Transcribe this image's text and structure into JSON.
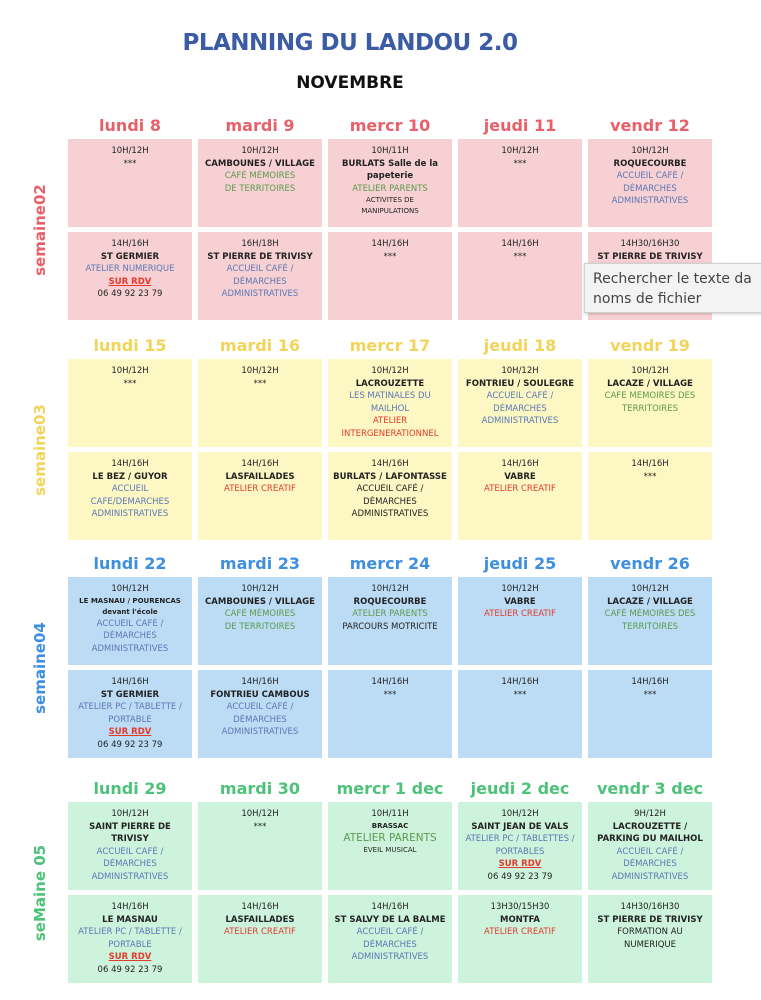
{
  "title": "PLANNING DU LANDOU 2.0",
  "subtitle": "NOVEMBRE",
  "weeks": [
    {
      "label": "semaine02",
      "color": "#e8606a",
      "background": "#f7d0d3",
      "days": [
        {
          "header": "lundi 8",
          "slots": [
            [
              {
                "text": "10H/12H"
              },
              {
                "text": "***"
              }
            ],
            [
              {
                "text": "14H/16H"
              },
              {
                "text": "ST GERMIER",
                "bold": true
              },
              {
                "text": "ATELIER NUMERIQUE",
                "color": "#5b78b5"
              },
              {
                "text": "SUR RDV",
                "color": "#e23b2e",
                "bold": true,
                "underline": true
              },
              {
                "text": "06 49 92 23 79"
              }
            ]
          ]
        },
        {
          "header": "mardi 9",
          "slots": [
            [
              {
                "text": "10H/12H"
              },
              {
                "text": "CAMBOUNES / VILLAGE",
                "bold": true
              },
              {
                "text": "CAFÉ MÉMOIRES",
                "color": "#5a9a4e"
              },
              {
                "text": "DE TERRITOIRES",
                "color": "#5a9a4e"
              }
            ],
            [
              {
                "text": "16H/18H"
              },
              {
                "text": "ST PIERRE DE TRIVISY",
                "bold": true
              },
              {
                "text": "ACCUEIL CAFÉ /",
                "color": "#5b78b5"
              },
              {
                "text": "DÉMARCHES",
                "color": "#5b78b5"
              },
              {
                "text": "ADMINISTRATIVES",
                "color": "#5b78b5"
              }
            ]
          ]
        },
        {
          "header": "mercr 10",
          "slots": [
            [
              {
                "text": "10H/11H"
              },
              {
                "text": "BURLATS Salle de la",
                "bold": true
              },
              {
                "text": "papeterie",
                "bold": true
              },
              {
                "text": "ATELIER PARENTS",
                "color": "#5a9a4e"
              },
              {
                "text": "ACTIVITES DE",
                "small": true
              },
              {
                "text": "MANIPULATIONS",
                "small": true
              }
            ],
            [
              {
                "text": "14H/16H"
              },
              {
                "text": "***"
              }
            ]
          ]
        },
        {
          "header": "jeudi 11",
          "slots": [
            [
              {
                "text": "10H/12H"
              },
              {
                "text": "***"
              }
            ],
            [
              {
                "text": "14H/16H"
              },
              {
                "text": "***"
              }
            ]
          ]
        },
        {
          "header": "vendr 12",
          "slots": [
            [
              {
                "text": "10H/12H"
              },
              {
                "text": "ROQUECOURBE",
                "bold": true
              },
              {
                "text": "ACCUEIL CAFÉ /",
                "color": "#5b78b5"
              },
              {
                "text": "DÉMARCHES",
                "color": "#5b78b5"
              },
              {
                "text": "ADMINISTRATIVES",
                "color": "#5b78b5"
              }
            ],
            [
              {
                "text": "14H30/16H30"
              },
              {
                "text": "ST PIERRE DE TRIVISY",
                "bold": true
              }
            ]
          ]
        }
      ]
    },
    {
      "label": "semaine03",
      "color": "#f2d45a",
      "background": "#fdf7c3",
      "days": [
        {
          "header": "lundi 15",
          "slots": [
            [
              {
                "text": "10H/12H"
              },
              {
                "text": "***"
              }
            ],
            [
              {
                "text": "14H/16H"
              },
              {
                "text": "LE BEZ / GUYOR",
                "bold": true
              },
              {
                "text": "ACCUEIL",
                "color": "#5b78b5"
              },
              {
                "text": "CAFE/DEMARCHES",
                "color": "#5b78b5"
              },
              {
                "text": "ADMINISTRATIVES",
                "color": "#5b78b5"
              }
            ]
          ]
        },
        {
          "header": "mardi 16",
          "slots": [
            [
              {
                "text": "10H/12H"
              },
              {
                "text": "***"
              }
            ],
            [
              {
                "text": "14H/16H"
              },
              {
                "text": "LASFAILLADES",
                "bold": true
              },
              {
                "text": "ATELIER CREATIF",
                "color": "#e23b2e"
              }
            ]
          ]
        },
        {
          "header": "mercr 17",
          "slots": [
            [
              {
                "text": "10H/12H"
              },
              {
                "text": "LACROUZETTE",
                "bold": true
              },
              {
                "text": "LES MATINALES DU",
                "color": "#5b78b5"
              },
              {
                "text": "MAILHOL",
                "color": "#5b78b5"
              },
              {
                "text": "ATELIER",
                "color": "#e23b2e"
              },
              {
                "text": "INTERGENERATIONNEL",
                "color": "#e23b2e"
              }
            ],
            [
              {
                "text": "14H/16H"
              },
              {
                "text": "BURLATS / LAFONTASSE",
                "bold": true
              },
              {
                "text": "ACCUEIL CAFÉ /"
              },
              {
                "text": "DÉMARCHES"
              },
              {
                "text": "ADMINISTRATIVES"
              }
            ]
          ]
        },
        {
          "header": "jeudi 18",
          "slots": [
            [
              {
                "text": "10H/12H"
              },
              {
                "text": "FONTRIEU / SOULEGRE",
                "bold": true
              },
              {
                "text": "ACCUEIL CAFÉ /",
                "color": "#5b78b5"
              },
              {
                "text": "DÉMARCHES",
                "color": "#5b78b5"
              },
              {
                "text": "ADMINISTRATIVES",
                "color": "#5b78b5"
              }
            ],
            [
              {
                "text": "14H/16H"
              },
              {
                "text": "VABRE",
                "bold": true
              },
              {
                "text": "ATELIER CREATIF",
                "color": "#e23b2e"
              }
            ]
          ]
        },
        {
          "header": "vendr 19",
          "slots": [
            [
              {
                "text": "10H/12H"
              },
              {
                "text": "LACAZE / VILLAGE",
                "bold": true
              },
              {
                "text": "CAFE MEMOIRES DES",
                "color": "#5a9a4e"
              },
              {
                "text": "TERRITOIRES",
                "color": "#5a9a4e"
              }
            ],
            [
              {
                "text": "14H/16H"
              },
              {
                "text": "***"
              }
            ]
          ]
        }
      ]
    },
    {
      "label": "semaine04",
      "color": "#3f8fe0",
      "background": "#bcdcf5",
      "days": [
        {
          "header": "lundi 22",
          "slots": [
            [
              {
                "text": "10H/12H"
              },
              {
                "text": "LE MASNAU / POURENCAS",
                "bold": true,
                "small": true
              },
              {
                "text": "devant l'école",
                "bold": true,
                "small": true
              },
              {
                "text": "ACCUEIL CAFÉ /",
                "color": "#5b78b5"
              },
              {
                "text": "DÉMARCHES",
                "color": "#5b78b5"
              },
              {
                "text": "ADMINISTRATIVES",
                "color": "#5b78b5"
              }
            ],
            [
              {
                "text": "14H/16H"
              },
              {
                "text": "ST GERMIER",
                "bold": true
              },
              {
                "text": "ATELIER PC / TABLETTE /",
                "color": "#5b78b5"
              },
              {
                "text": "PORTABLE",
                "color": "#5b78b5"
              },
              {
                "text": "SUR RDV",
                "color": "#e23b2e",
                "bold": true,
                "underline": true
              },
              {
                "text": "06 49 92 23 79"
              }
            ]
          ]
        },
        {
          "header": "mardi 23",
          "slots": [
            [
              {
                "text": "10H/12H"
              },
              {
                "text": "CAMBOUNES / VILLAGE",
                "bold": true
              },
              {
                "text": "CAFÉ MÉMOIRES",
                "color": "#5a9a4e"
              },
              {
                "text": "DE TERRITOIRES",
                "color": "#5a9a4e"
              }
            ],
            [
              {
                "text": "14H/16H"
              },
              {
                "text": "FONTRIEU CAMBOUS",
                "bold": true
              },
              {
                "text": "ACCUEIL CAFÉ /",
                "color": "#5b78b5"
              },
              {
                "text": "DÉMARCHES",
                "color": "#5b78b5"
              },
              {
                "text": "ADMINISTRATIVES",
                "color": "#5b78b5"
              }
            ]
          ]
        },
        {
          "header": "mercr 24",
          "slots": [
            [
              {
                "text": "10H/12H"
              },
              {
                "text": "ROQUECOURBE",
                "bold": true
              },
              {
                "text": "ATELIER PARENTS",
                "color": "#5a9a4e"
              },
              {
                "text": "PARCOURS MOTRICITE"
              }
            ],
            [
              {
                "text": "14H/16H"
              },
              {
                "text": "***"
              }
            ]
          ]
        },
        {
          "header": "jeudi 25",
          "slots": [
            [
              {
                "text": "10H/12H"
              },
              {
                "text": "VABRE",
                "bold": true
              },
              {
                "text": "ATELIER CREATIF",
                "color": "#e23b2e"
              }
            ],
            [
              {
                "text": "14H/16H"
              },
              {
                "text": "***"
              }
            ]
          ]
        },
        {
          "header": "vendr 26",
          "slots": [
            [
              {
                "text": "10H/12H"
              },
              {
                "text": "LACAZE / VILLAGE",
                "bold": true
              },
              {
                "text": "CAFÉ MÉMOIRES DES",
                "color": "#5a9a4e"
              },
              {
                "text": "TERRITOIRES",
                "color": "#5a9a4e"
              }
            ],
            [
              {
                "text": "14H/16H"
              },
              {
                "text": "***"
              }
            ]
          ]
        }
      ]
    },
    {
      "label": "seMaine 05",
      "color": "#4ec27a",
      "background": "#cdf3dc",
      "days": [
        {
          "header": "lundi 29",
          "slots": [
            [
              {
                "text": "10H/12H"
              },
              {
                "text": "SAINT PIERRE DE",
                "bold": true
              },
              {
                "text": "TRIVISY",
                "bold": true
              },
              {
                "text": "ACCUEIL CAFÉ /",
                "color": "#5b78b5"
              },
              {
                "text": "DÉMARCHES",
                "color": "#5b78b5"
              },
              {
                "text": "ADMINISTRATIVES",
                "color": "#5b78b5"
              }
            ],
            [
              {
                "text": "14H/16H"
              },
              {
                "text": "LE MASNAU",
                "bold": true
              },
              {
                "text": "ATELIER PC / TABLETTE /",
                "color": "#5b78b5"
              },
              {
                "text": "PORTABLE",
                "color": "#5b78b5"
              },
              {
                "text": "SUR RDV",
                "color": "#e23b2e",
                "bold": true,
                "underline": true
              },
              {
                "text": "06 49 92 23 79"
              }
            ]
          ]
        },
        {
          "header": "mardi 30",
          "slots": [
            [
              {
                "text": "10H/12H"
              },
              {
                "text": "***"
              }
            ],
            [
              {
                "text": "14H/16H"
              },
              {
                "text": "LASFAILLADES",
                "bold": true
              },
              {
                "text": "ATELIER CREATIF",
                "color": "#e23b2e"
              }
            ]
          ]
        },
        {
          "header": "mercr 1 dec",
          "slots": [
            [
              {
                "text": "10H/11H"
              },
              {
                "text": "BRASSAC",
                "bold": true,
                "small": true
              },
              {
                "text": "ATELIER PARENTS",
                "color": "#5a9a4e",
                "large": true
              },
              {
                "text": "EVEIL MUSICAL",
                "small": true
              }
            ],
            [
              {
                "text": "14H/16H"
              },
              {
                "text": "ST SALVY DE LA BALME",
                "bold": true
              },
              {
                "text": "ACCUEIL CAFÉ /",
                "color": "#5b78b5"
              },
              {
                "text": "DÉMARCHES",
                "color": "#5b78b5"
              },
              {
                "text": "ADMINISTRATIVES",
                "color": "#5b78b5"
              }
            ]
          ]
        },
        {
          "header": "jeudi 2 dec",
          "slots": [
            [
              {
                "text": "10H/12H"
              },
              {
                "text": "SAINT JEAN DE VALS",
                "bold": true
              },
              {
                "text": "ATELIER PC / TABLETTES /",
                "color": "#5b78b5"
              },
              {
                "text": "PORTABLES",
                "color": "#5b78b5"
              },
              {
                "text": "SUR RDV",
                "color": "#e23b2e",
                "bold": true,
                "underline": true
              },
              {
                "text": "06 49 92 23 79"
              }
            ],
            [
              {
                "text": "13H30/15H30"
              },
              {
                "text": "MONTFA",
                "bold": true
              },
              {
                "text": "ATELIER CREATIF",
                "color": "#e23b2e"
              }
            ]
          ]
        },
        {
          "header": "vendr 3 dec",
          "slots": [
            [
              {
                "text": "9H/12H"
              },
              {
                "text": "LACROUZETTE /",
                "bold": true
              },
              {
                "text": "PARKING DU MAILHOL",
                "bold": true
              },
              {
                "text": "ACCUEIL CAFÉ /",
                "color": "#5b78b5"
              },
              {
                "text": "DÉMARCHES",
                "color": "#5b78b5"
              },
              {
                "text": "ADMINISTRATIVES",
                "color": "#5b78b5"
              }
            ],
            [
              {
                "text": "14H30/16H30"
              },
              {
                "text": "ST PIERRE DE TRIVISY",
                "bold": true
              },
              {
                "text": "FORMATION AU"
              },
              {
                "text": "NUMERIQUE"
              }
            ]
          ]
        }
      ]
    }
  ],
  "tooltip": [
    "Rechercher le texte da",
    "noms de fichier"
  ]
}
